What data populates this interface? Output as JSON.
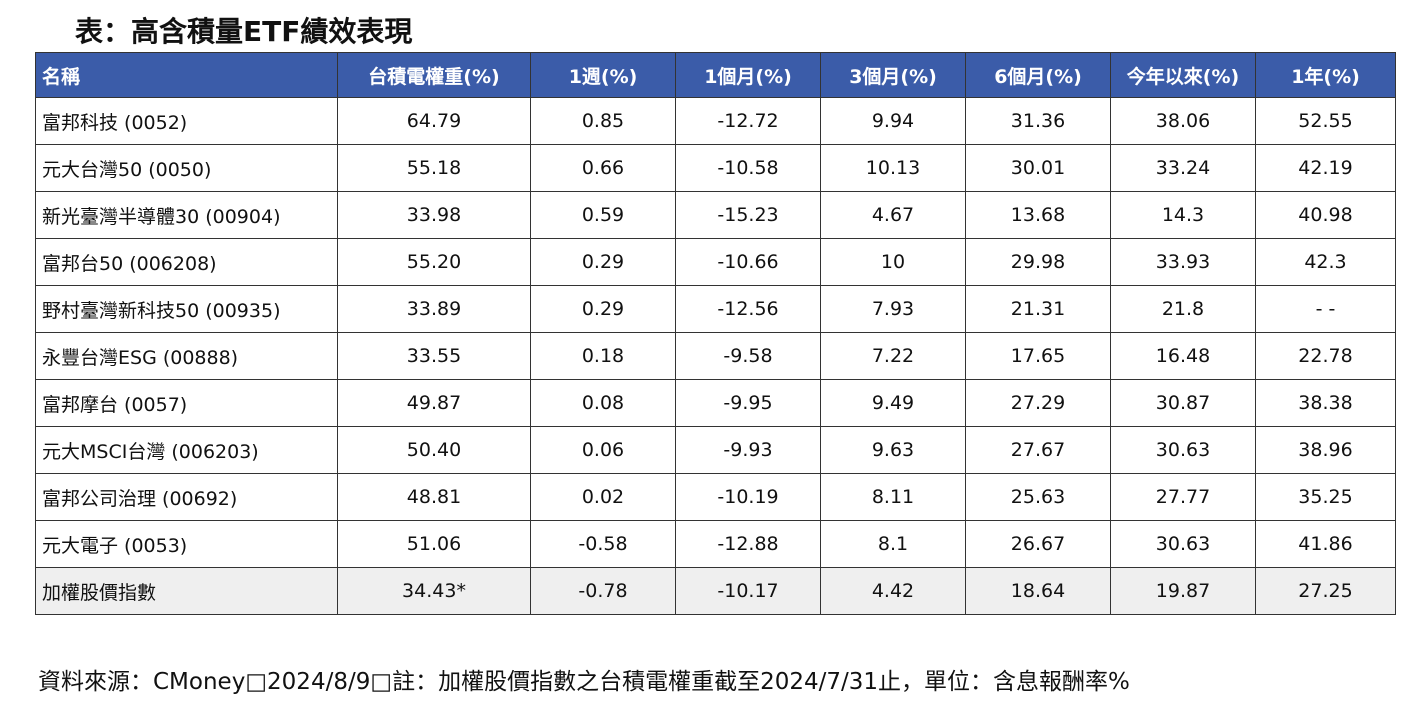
{
  "header": {
    "title": "表：高含積量ETF績效表現"
  },
  "table": {
    "columns": [
      "名稱",
      "台積電權重(%)",
      "1週(%)",
      "1個月(%)",
      "3個月(%)",
      "6個月(%)",
      "今年以來(%)",
      "1年(%)"
    ],
    "rows": [
      [
        "富邦科技 (0052)",
        "64.79",
        "0.85",
        "-12.72",
        "9.94",
        "31.36",
        "38.06",
        "52.55"
      ],
      [
        "元大台灣50 (0050)",
        "55.18",
        "0.66",
        "-10.58",
        "10.13",
        "30.01",
        "33.24",
        "42.19"
      ],
      [
        "新光臺灣半導體30 (00904)",
        "33.98",
        "0.59",
        "-15.23",
        "4.67",
        "13.68",
        "14.3",
        "40.98"
      ],
      [
        "富邦台50 (006208)",
        "55.20",
        "0.29",
        "-10.66",
        "10",
        "29.98",
        "33.93",
        "42.3"
      ],
      [
        "野村臺灣新科技50 (00935)",
        "33.89",
        "0.29",
        "-12.56",
        "7.93",
        "21.31",
        "21.8",
        "- -"
      ],
      [
        "永豐台灣ESG (00888)",
        "33.55",
        "0.18",
        "-9.58",
        "7.22",
        "17.65",
        "16.48",
        "22.78"
      ],
      [
        "富邦摩台 (0057)",
        "49.87",
        "0.08",
        "-9.95",
        "9.49",
        "27.29",
        "30.87",
        "38.38"
      ],
      [
        "元大MSCI台灣 (006203)",
        "50.40",
        "0.06",
        "-9.93",
        "9.63",
        "27.67",
        "30.63",
        "38.96"
      ],
      [
        "富邦公司治理 (00692)",
        "48.81",
        "0.02",
        "-10.19",
        "8.11",
        "25.63",
        "27.77",
        "35.25"
      ],
      [
        "元大電子 (0053)",
        "51.06",
        "-0.58",
        "-12.88",
        "8.1",
        "26.67",
        "30.63",
        "41.86"
      ],
      [
        "加權股價指數",
        "34.43*",
        "-0.78",
        "-10.17",
        "4.42",
        "18.64",
        "19.87",
        "27.25"
      ]
    ]
  },
  "footer": {
    "note": "資料來源：CMoney□2024/8/9□註：加權股價指數之台積電權重截至2024/7/31止，單位：含息報酬率%"
  }
}
